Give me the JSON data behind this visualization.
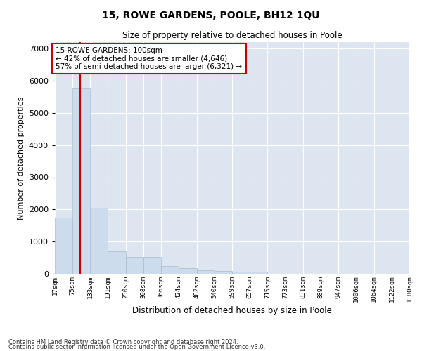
{
  "title": "15, ROWE GARDENS, POOLE, BH12 1QU",
  "subtitle": "Size of property relative to detached houses in Poole",
  "xlabel": "Distribution of detached houses by size in Poole",
  "ylabel": "Number of detached properties",
  "footer_line1": "Contains HM Land Registry data © Crown copyright and database right 2024.",
  "footer_line2": "Contains public sector information licensed under the Open Government Licence v3.0.",
  "annotation_line1": "15 ROWE GARDENS: 100sqm",
  "annotation_line2": "← 42% of detached houses are smaller (4,646)",
  "annotation_line3": "57% of semi-detached houses are larger (6,321) →",
  "bar_color": "#ccdcec",
  "bar_edge_color": "#aabbcc",
  "red_line_color": "#cc0000",
  "annotation_box_color": "#cc0000",
  "background_color": "#ffffff",
  "grid_color": "#dde5f0",
  "bin_labels": [
    "17sqm",
    "75sqm",
    "133sqm",
    "191sqm",
    "250sqm",
    "308sqm",
    "366sqm",
    "424sqm",
    "482sqm",
    "540sqm",
    "599sqm",
    "657sqm",
    "715sqm",
    "773sqm",
    "831sqm",
    "889sqm",
    "947sqm",
    "1006sqm",
    "1064sqm",
    "1122sqm",
    "1180sqm"
  ],
  "bin_edges": [
    17,
    75,
    133,
    191,
    250,
    308,
    366,
    424,
    482,
    540,
    599,
    657,
    715,
    773,
    831,
    889,
    947,
    1006,
    1064,
    1122,
    1180
  ],
  "values": [
    1750,
    5750,
    2050,
    700,
    530,
    520,
    230,
    170,
    120,
    80,
    70,
    70,
    0,
    0,
    0,
    0,
    0,
    0,
    0,
    0
  ],
  "property_size": 100,
  "ylim": [
    0,
    7200
  ],
  "yticks": [
    0,
    1000,
    2000,
    3000,
    4000,
    5000,
    6000,
    7000
  ],
  "fig_width": 6.0,
  "fig_height": 5.0,
  "dpi": 100
}
